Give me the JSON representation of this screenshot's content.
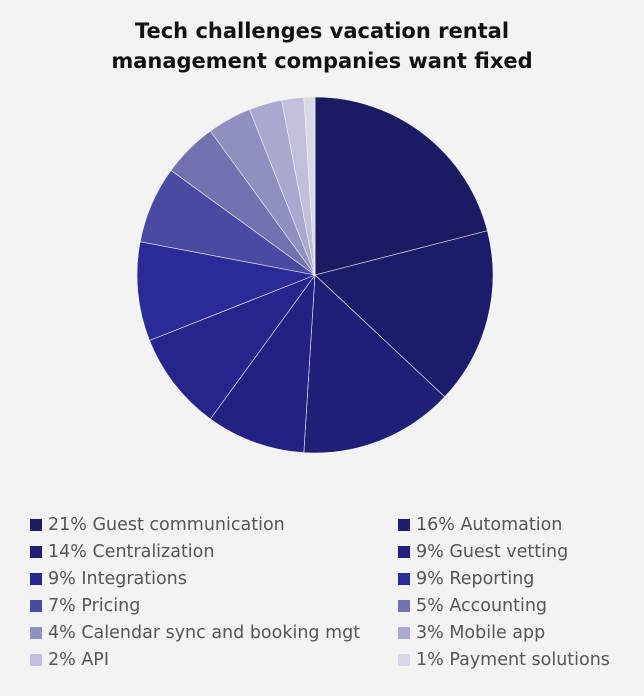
{
  "chart_data": {
    "type": "pie",
    "title": "Tech challenges vacation rental management companies want fixed",
    "title_lines": [
      "Tech challenges vacation rental",
      "management companies want fixed"
    ],
    "legend_position": "bottom",
    "slices": [
      {
        "label": "21% Guest communication",
        "value": 21,
        "color": "#1b1b63"
      },
      {
        "label": "16% Automation",
        "value": 16,
        "color": "#1c1c6c"
      },
      {
        "label": "14% Centralization",
        "value": 14,
        "color": "#1f1f78"
      },
      {
        "label": "9% Guest vetting",
        "value": 9,
        "color": "#222283"
      },
      {
        "label": "9% Integrations",
        "value": 9,
        "color": "#25258c"
      },
      {
        "label": "9% Reporting",
        "value": 9,
        "color": "#2a2a98"
      },
      {
        "label": "7% Pricing",
        "value": 7,
        "color": "#4a4aa3"
      },
      {
        "label": "5% Accounting",
        "value": 5,
        "color": "#7272b0"
      },
      {
        "label": "4% Calendar sync and booking mgt",
        "value": 4,
        "color": "#8f8fc0"
      },
      {
        "label": "3% Mobile app",
        "value": 3,
        "color": "#a9a9cf"
      },
      {
        "label": "2% API",
        "value": 2,
        "color": "#c0c0dd"
      },
      {
        "label": "1% Payment solutions",
        "value": 1,
        "color": "#d8d8e8"
      }
    ]
  }
}
